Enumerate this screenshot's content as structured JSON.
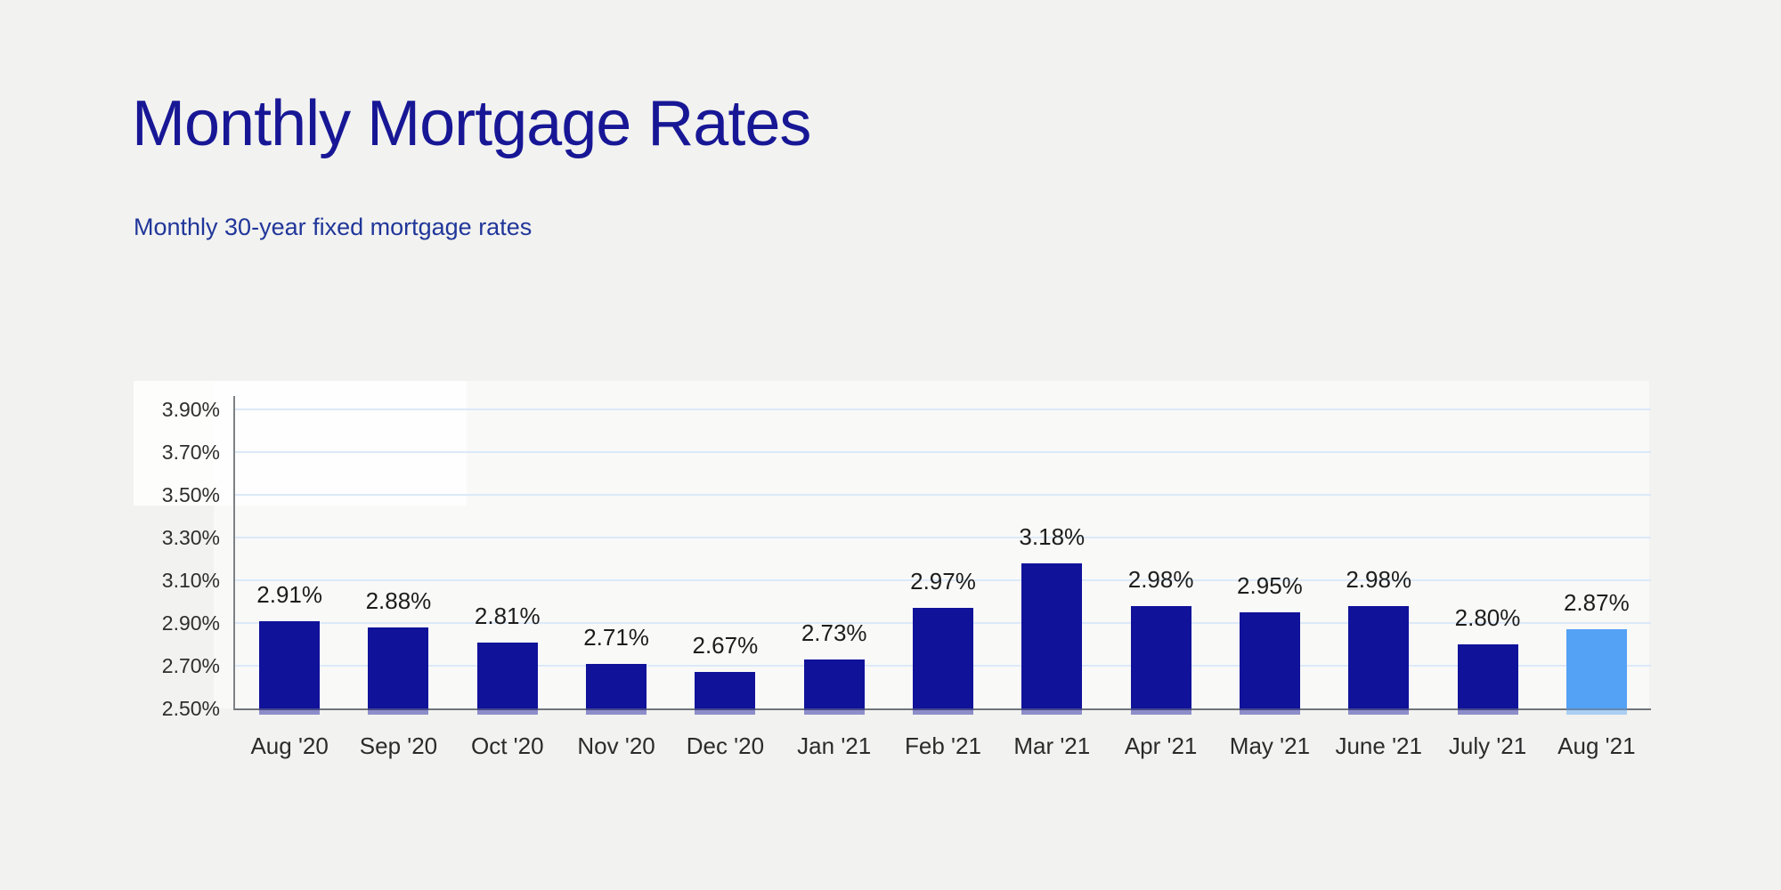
{
  "page": {
    "title": "Monthly Mortgage Rates",
    "subtitle": "Monthly 30-year fixed mortgage rates"
  },
  "chart_data": {
    "type": "bar",
    "title": "Monthly Mortgage Rates",
    "subtitle": "Monthly 30-year fixed mortgage rates",
    "categories": [
      "Aug '20",
      "Sep '20",
      "Oct '20",
      "Nov '20",
      "Dec '20",
      "Jan '21",
      "Feb '21",
      "Mar '21",
      "Apr '21",
      "May '21",
      "June '21",
      "July '21",
      "Aug '21"
    ],
    "values": [
      2.91,
      2.88,
      2.81,
      2.71,
      2.67,
      2.73,
      2.97,
      3.18,
      2.98,
      2.95,
      2.98,
      2.8,
      2.87
    ],
    "value_labels": [
      "2.91%",
      "2.88%",
      "2.81%",
      "2.71%",
      "2.67%",
      "2.73%",
      "2.97%",
      "3.18%",
      "2.98%",
      "2.95%",
      "2.98%",
      "2.80%",
      "2.87%"
    ],
    "yticks": [
      2.5,
      2.7,
      2.9,
      3.1,
      3.3,
      3.5,
      3.7,
      3.9
    ],
    "ytick_labels": [
      "2.50%",
      "2.70%",
      "2.90%",
      "3.10%",
      "3.30%",
      "3.50%",
      "3.70%",
      "3.90%"
    ],
    "ylim": [
      2.5,
      3.96
    ],
    "xlabel": "",
    "ylabel": "",
    "grid": true,
    "legend": false,
    "bar_color": "#10129a",
    "highlight_color": "#54a2f5",
    "highlight_index": 12,
    "gridline_color": "#dce9f8",
    "axis_color": "#71767a",
    "background_color": "#f2f2f0",
    "title_color": "#171796",
    "subtitle_color": "#20369a"
  }
}
